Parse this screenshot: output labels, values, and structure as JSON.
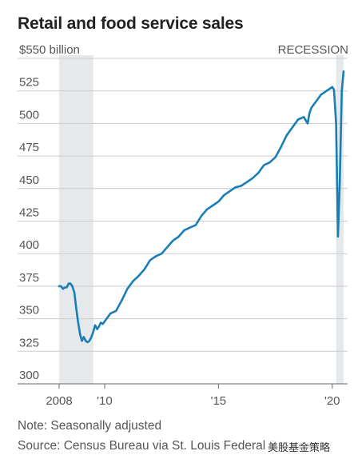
{
  "title": "Retail and food service sales",
  "unit_label": "$550 billion",
  "recession_label": "RECESSION",
  "note": "Note: Seasonally adjusted",
  "source": "Source: Census Bureau via St. Louis Federal Reserve",
  "watermark": "美股基金策略",
  "colors": {
    "line": "#1a7db3",
    "recession": "#e6e9ec",
    "grid": "#cccccc",
    "axis": "#666666"
  },
  "chart_data": {
    "type": "line",
    "title": "Retail and food service sales",
    "ylabel": "$550 billion",
    "ylim": [
      300,
      550
    ],
    "xlim": [
      2008,
      2020.5
    ],
    "y_ticks": [
      300,
      325,
      350,
      375,
      400,
      425,
      450,
      475,
      500,
      525
    ],
    "y_tick_labels": [
      "300",
      "325",
      "350",
      "375",
      "400",
      "425",
      "450",
      "475",
      "500",
      "525"
    ],
    "x_ticks": [
      2008,
      2010,
      2015,
      2020
    ],
    "x_tick_labels": [
      "2008",
      "'10",
      "'15",
      "'20"
    ],
    "grid": "horizontal",
    "recessions": [
      {
        "label": "RECESSION",
        "start": 2008.0,
        "end": 2009.5
      },
      {
        "label": "RECESSION",
        "start": 2020.17,
        "end": 2020.5
      }
    ],
    "series": [
      {
        "x": [
          2008.0,
          2008.08,
          2008.17,
          2008.25,
          2008.33,
          2008.42,
          2008.5,
          2008.58,
          2008.67,
          2008.75,
          2008.83,
          2008.92,
          2009.0,
          2009.08,
          2009.17,
          2009.25,
          2009.33,
          2009.42,
          2009.5,
          2009.58,
          2009.67,
          2009.75,
          2009.83,
          2009.92,
          2010.0,
          2010.25,
          2010.5,
          2010.75,
          2011.0,
          2011.25,
          2011.5,
          2011.75,
          2012.0,
          2012.25,
          2012.5,
          2012.75,
          2013.0,
          2013.25,
          2013.5,
          2013.75,
          2014.0,
          2014.25,
          2014.5,
          2014.75,
          2015.0,
          2015.25,
          2015.5,
          2015.75,
          2016.0,
          2016.25,
          2016.5,
          2016.75,
          2017.0,
          2017.25,
          2017.5,
          2017.75,
          2018.0,
          2018.25,
          2018.5,
          2018.75,
          2018.92,
          2019.0,
          2019.08,
          2019.25,
          2019.5,
          2019.75,
          2020.0,
          2020.08,
          2020.17,
          2020.25,
          2020.33,
          2020.42,
          2020.5
        ],
        "y": [
          375,
          375,
          373,
          374,
          374,
          377,
          377,
          375,
          370,
          358,
          348,
          338,
          333,
          336,
          333,
          332,
          333,
          336,
          340,
          345,
          342,
          344,
          347,
          346,
          348,
          354,
          356,
          364,
          373,
          379,
          383,
          388,
          395,
          398,
          400,
          405,
          410,
          413,
          418,
          420,
          422,
          429,
          434,
          437,
          440,
          445,
          448,
          451,
          452,
          455,
          458,
          462,
          468,
          470,
          474,
          482,
          491,
          497,
          503,
          505,
          500,
          508,
          512,
          516,
          522,
          525,
          528,
          526,
          500,
          413,
          455,
          525,
          540
        ]
      }
    ]
  }
}
